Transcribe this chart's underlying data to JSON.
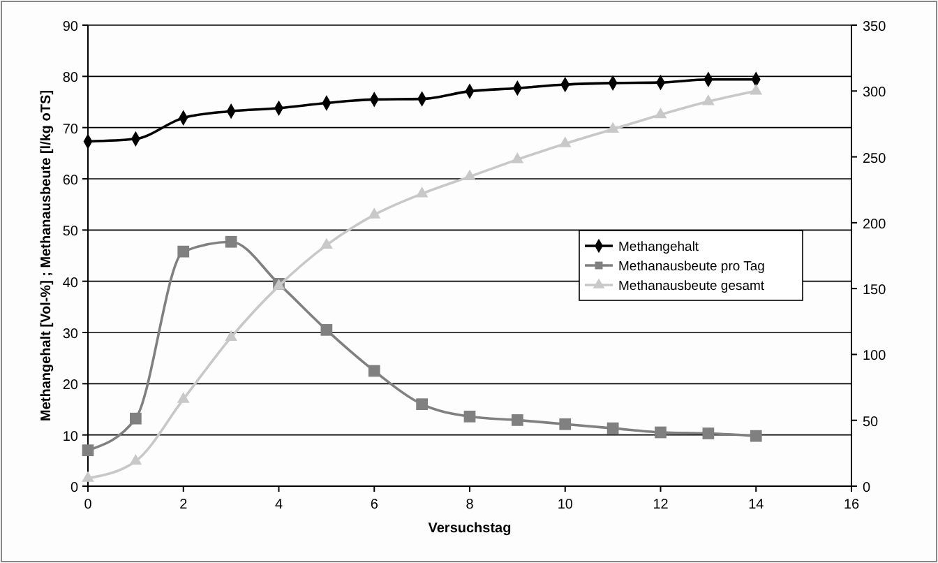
{
  "chart_data": {
    "type": "line",
    "xlabel": "Versuchstag",
    "ylabel": "Methangehalt [Vol-%] ; Methanausbeute [l/kg oTS]",
    "x": [
      0,
      1,
      2,
      3,
      4,
      5,
      6,
      7,
      8,
      9,
      10,
      11,
      12,
      13,
      14
    ],
    "xlim": [
      0,
      16
    ],
    "xticks": [
      0,
      2,
      4,
      6,
      8,
      10,
      12,
      14,
      16
    ],
    "ylim": [
      0,
      90
    ],
    "yticks": [
      0,
      10,
      20,
      30,
      40,
      50,
      60,
      70,
      80,
      90
    ],
    "y2lim": [
      0,
      350
    ],
    "y2ticks": [
      0,
      50,
      100,
      150,
      200,
      250,
      300,
      350
    ],
    "grid": "y",
    "legend": "right",
    "series": [
      {
        "name": "Methangehalt",
        "color": "#000000",
        "marker": "diamond",
        "values": [
          67.3,
          67.8,
          71.9,
          73.2,
          73.8,
          74.8,
          75.5,
          75.6,
          77.1,
          77.7,
          78.4,
          78.7,
          78.8,
          79.4,
          79.4
        ]
      },
      {
        "name": "Methanausbeute pro Tag",
        "color": "#808080",
        "marker": "square",
        "values": [
          7,
          13.2,
          45.8,
          47.7,
          39.5,
          30.5,
          22.5,
          16,
          13.6,
          12.9,
          12.1,
          11.3,
          10.5,
          10.3,
          9.8
        ]
      },
      {
        "name": "Methanausbeute gesamt",
        "color": "#c8c8c8",
        "marker": "triangle",
        "axis": "y2",
        "values": [
          6,
          19,
          66,
          113,
          152,
          183,
          206,
          222,
          235,
          248,
          260,
          271,
          282,
          292,
          300
        ]
      }
    ]
  }
}
